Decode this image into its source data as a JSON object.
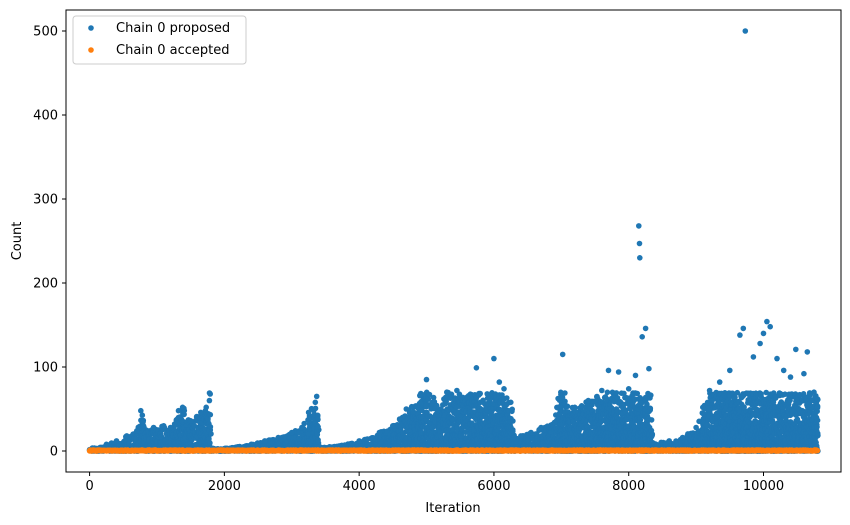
{
  "chart_data": {
    "type": "scatter",
    "title": "",
    "xlabel": "Iteration",
    "ylabel": "Count",
    "xlim": [
      -350,
      11150
    ],
    "ylim": [
      -25,
      525
    ],
    "xticks": [
      0,
      2000,
      4000,
      6000,
      8000,
      10000
    ],
    "yticks": [
      0,
      100,
      200,
      300,
      400,
      500
    ],
    "legend_position": "top-left",
    "grid": false,
    "series": [
      {
        "name": "Chain 0 proposed",
        "color": "#1f77b4",
        "peaks": [
          [
            0,
            1
          ],
          [
            100,
            3
          ],
          [
            250,
            8
          ],
          [
            400,
            12
          ],
          [
            550,
            18
          ],
          [
            700,
            24
          ],
          [
            760,
            48
          ],
          [
            800,
            30
          ],
          [
            950,
            28
          ],
          [
            1100,
            30
          ],
          [
            1200,
            28
          ],
          [
            1320,
            48
          ],
          [
            1380,
            52
          ],
          [
            1500,
            36
          ],
          [
            1650,
            46
          ],
          [
            1730,
            52
          ],
          [
            1780,
            69
          ],
          [
            1800,
            3
          ],
          [
            2000,
            3
          ],
          [
            2200,
            5
          ],
          [
            2400,
            8
          ],
          [
            2600,
            12
          ],
          [
            2800,
            16
          ],
          [
            3000,
            22
          ],
          [
            3150,
            28
          ],
          [
            3250,
            46
          ],
          [
            3350,
            58
          ],
          [
            3370,
            65
          ],
          [
            3400,
            5
          ],
          [
            3700,
            6
          ],
          [
            4000,
            12
          ],
          [
            4300,
            22
          ],
          [
            4500,
            30
          ],
          [
            4600,
            38
          ],
          [
            4700,
            50
          ],
          [
            4900,
            66
          ],
          [
            5000,
            85
          ],
          [
            5150,
            54
          ],
          [
            5300,
            70
          ],
          [
            5450,
            72
          ],
          [
            5600,
            64
          ],
          [
            5740,
            99
          ],
          [
            5800,
            58
          ],
          [
            5900,
            68
          ],
          [
            6000,
            110
          ],
          [
            6080,
            82
          ],
          [
            6150,
            74
          ],
          [
            6250,
            58
          ],
          [
            6300,
            16
          ],
          [
            6400,
            18
          ],
          [
            6550,
            22
          ],
          [
            6700,
            28
          ],
          [
            6900,
            34
          ],
          [
            7020,
            115
          ],
          [
            7050,
            56
          ],
          [
            7200,
            52
          ],
          [
            7400,
            60
          ],
          [
            7600,
            72
          ],
          [
            7700,
            96
          ],
          [
            7850,
            94
          ],
          [
            8000,
            74
          ],
          [
            8100,
            90
          ],
          [
            8150,
            268
          ],
          [
            8160,
            247
          ],
          [
            8165,
            230
          ],
          [
            8200,
            136
          ],
          [
            8250,
            146
          ],
          [
            8300,
            98
          ],
          [
            8350,
            10
          ],
          [
            8600,
            12
          ],
          [
            8800,
            16
          ],
          [
            9000,
            28
          ],
          [
            9100,
            52
          ],
          [
            9200,
            72
          ],
          [
            9350,
            82
          ],
          [
            9500,
            96
          ],
          [
            9650,
            138
          ],
          [
            9700,
            146
          ],
          [
            9730,
            500
          ],
          [
            9850,
            112
          ],
          [
            9950,
            128
          ],
          [
            10000,
            140
          ],
          [
            10050,
            154
          ],
          [
            10100,
            148
          ],
          [
            10200,
            110
          ],
          [
            10300,
            96
          ],
          [
            10400,
            88
          ],
          [
            10480,
            121
          ],
          [
            10600,
            92
          ],
          [
            10650,
            118
          ],
          [
            10750,
            70
          ],
          [
            10800,
            62
          ]
        ]
      },
      {
        "name": "Chain 0 accepted",
        "color": "#ff7f0e",
        "peaks": [
          [
            0,
            0
          ],
          [
            10800,
            0
          ]
        ]
      }
    ]
  }
}
